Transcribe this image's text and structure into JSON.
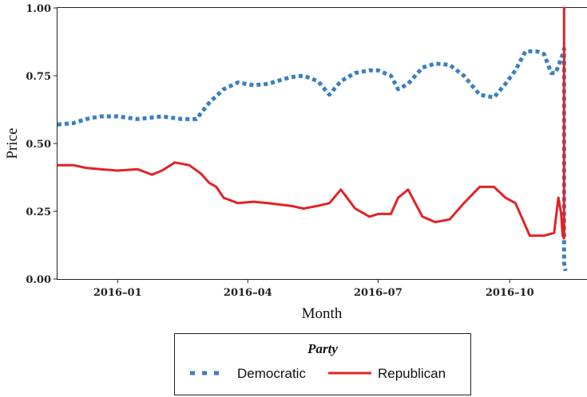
{
  "chart_data": {
    "type": "line",
    "title": "",
    "xlabel": "Month",
    "ylabel": "Price",
    "ylim": [
      0,
      1
    ],
    "xlim": [
      "2015-11-20",
      "2016-11-24"
    ],
    "x_ticks": [
      {
        "date": "2016-01-01",
        "label": "2016–01"
      },
      {
        "date": "2016-04-01",
        "label": "2016–04"
      },
      {
        "date": "2016-07-01",
        "label": "2016–07"
      },
      {
        "date": "2016-10-01",
        "label": "2016–10"
      }
    ],
    "y_ticks": [
      {
        "value": 0,
        "label": "0.00"
      },
      {
        "value": 0.25,
        "label": "0.25"
      },
      {
        "value": 0.5,
        "label": "0.50"
      },
      {
        "value": 0.75,
        "label": "0.75"
      },
      {
        "value": 1,
        "label": "1.00"
      }
    ],
    "grid": false,
    "legend": {
      "title": "Party",
      "position": "bottom"
    },
    "series": [
      {
        "name": "Democratic",
        "color": "#3a7fc1",
        "style": "dotted",
        "x": [
          "2015-11-20",
          "2015-12-01",
          "2015-12-10",
          "2015-12-20",
          "2016-01-01",
          "2016-01-15",
          "2016-02-01",
          "2016-02-15",
          "2016-02-25",
          "2016-03-05",
          "2016-03-15",
          "2016-03-25",
          "2016-04-05",
          "2016-04-15",
          "2016-05-01",
          "2016-05-10",
          "2016-05-20",
          "2016-05-28",
          "2016-06-05",
          "2016-06-15",
          "2016-06-25",
          "2016-07-01",
          "2016-07-10",
          "2016-07-15",
          "2016-07-22",
          "2016-08-01",
          "2016-08-10",
          "2016-08-20",
          "2016-08-30",
          "2016-09-10",
          "2016-09-20",
          "2016-09-28",
          "2016-10-05",
          "2016-10-12",
          "2016-10-20",
          "2016-10-25",
          "2016-10-30",
          "2016-11-02",
          "2016-11-05",
          "2016-11-07",
          "2016-11-08",
          "2016-11-08",
          "2016-11-09"
        ],
        "y": [
          0.57,
          0.575,
          0.59,
          0.6,
          0.6,
          0.59,
          0.6,
          0.59,
          0.59,
          0.65,
          0.7,
          0.725,
          0.715,
          0.72,
          0.745,
          0.75,
          0.73,
          0.68,
          0.73,
          0.76,
          0.77,
          0.77,
          0.75,
          0.7,
          0.72,
          0.78,
          0.795,
          0.79,
          0.75,
          0.68,
          0.67,
          0.72,
          0.77,
          0.84,
          0.84,
          0.83,
          0.76,
          0.76,
          0.8,
          0.83,
          0.85,
          0.06,
          0.03
        ]
      },
      {
        "name": "Republican",
        "color": "#e32226",
        "style": "solid",
        "x": [
          "2015-11-20",
          "2015-12-01",
          "2015-12-10",
          "2015-12-20",
          "2016-01-01",
          "2016-01-15",
          "2016-01-25",
          "2016-02-01",
          "2016-02-10",
          "2016-02-20",
          "2016-02-28",
          "2016-03-05",
          "2016-03-10",
          "2016-03-15",
          "2016-03-25",
          "2016-04-05",
          "2016-04-15",
          "2016-05-01",
          "2016-05-10",
          "2016-05-20",
          "2016-05-28",
          "2016-06-05",
          "2016-06-15",
          "2016-06-25",
          "2016-07-01",
          "2016-07-10",
          "2016-07-15",
          "2016-07-22",
          "2016-08-01",
          "2016-08-10",
          "2016-08-20",
          "2016-08-30",
          "2016-09-10",
          "2016-09-20",
          "2016-09-28",
          "2016-10-05",
          "2016-10-10",
          "2016-10-15",
          "2016-10-25",
          "2016-11-01",
          "2016-11-04",
          "2016-11-06",
          "2016-11-07",
          "2016-11-08",
          "2016-11-08",
          "2016-11-09"
        ],
        "y": [
          0.42,
          0.42,
          0.41,
          0.405,
          0.4,
          0.405,
          0.385,
          0.4,
          0.43,
          0.42,
          0.39,
          0.355,
          0.34,
          0.3,
          0.28,
          0.285,
          0.28,
          0.27,
          0.26,
          0.27,
          0.28,
          0.33,
          0.26,
          0.23,
          0.24,
          0.24,
          0.3,
          0.33,
          0.23,
          0.21,
          0.22,
          0.28,
          0.34,
          0.34,
          0.3,
          0.28,
          0.22,
          0.16,
          0.16,
          0.17,
          0.3,
          0.24,
          0.16,
          0.15,
          1.0,
          1.0
        ]
      }
    ]
  }
}
